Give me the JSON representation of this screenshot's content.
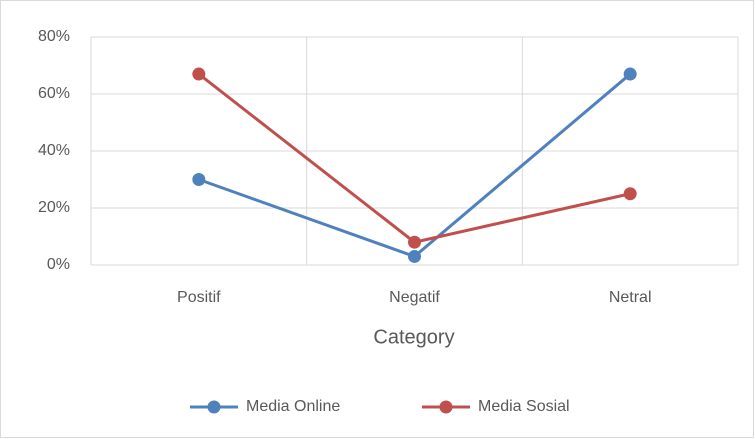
{
  "chart_data": {
    "type": "line",
    "x_label": "Category",
    "categories": [
      "Positif",
      "Negatif",
      "Netral"
    ],
    "series": [
      {
        "name": "Media Online",
        "color": "#4f81bd",
        "values": [
          30,
          3,
          67
        ]
      },
      {
        "name": "Media Sosial",
        "color": "#c0504d",
        "values": [
          67,
          8,
          25
        ]
      }
    ],
    "ylim": [
      0,
      80
    ],
    "yticks": [
      {
        "value": 0,
        "label": "0%"
      },
      {
        "value": 20,
        "label": "20%"
      },
      {
        "value": 40,
        "label": "40%"
      },
      {
        "value": 60,
        "label": "60%"
      },
      {
        "value": 80,
        "label": "80%"
      }
    ],
    "grid": true,
    "legend": "bottom"
  }
}
